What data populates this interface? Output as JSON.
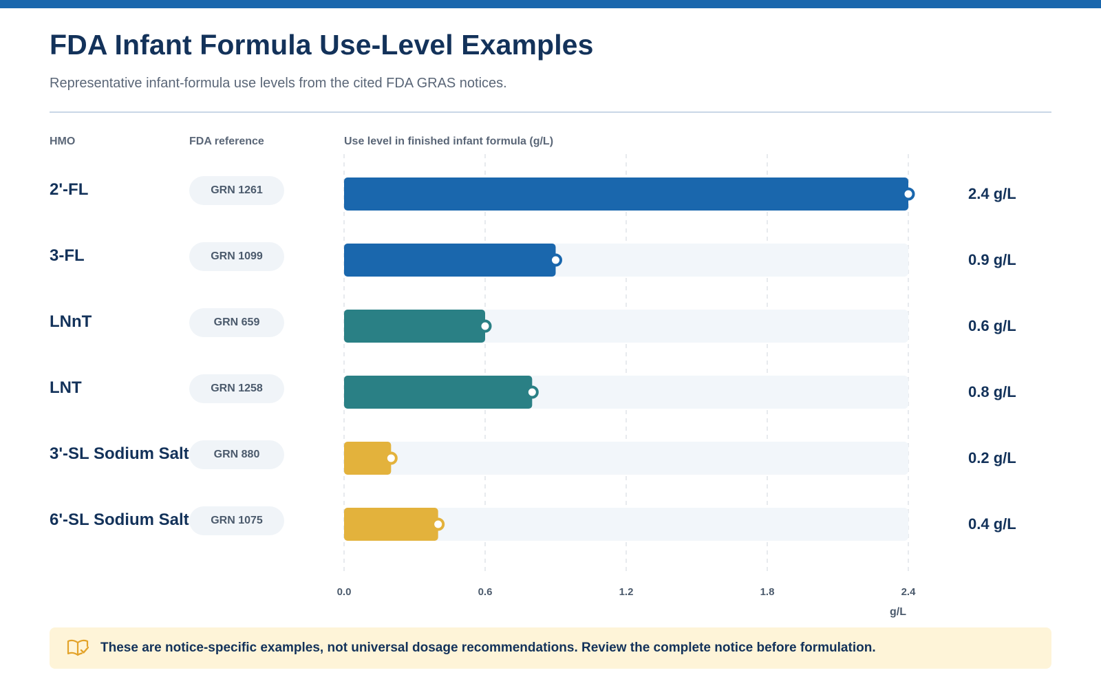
{
  "page": {
    "title": "FDA Infant Formula Use-Level Examples",
    "subtitle": "Representative infant-formula use levels from the cited FDA GRAS notices."
  },
  "columns": {
    "hmo": "HMO",
    "reference": "FDA reference",
    "use_level": "Use level in finished infant formula (g/L)"
  },
  "colors": {
    "blue": "#1a67ad",
    "teal": "#2a8085",
    "gold": "#e3b23c",
    "track": "#f2f6fa",
    "grid": "#dfe3e8"
  },
  "chart_data": {
    "type": "bar",
    "orientation": "horizontal",
    "categories": [
      "2'-FL",
      "3-FL",
      "LNnT",
      "LNT",
      "3'-SL Sodium Salt",
      "6'-SL Sodium Salt"
    ],
    "references": [
      "GRN 1261",
      "GRN 1099",
      "GRN 659",
      "GRN 1258",
      "GRN 880",
      "GRN 1075"
    ],
    "values": [
      2.4,
      0.9,
      0.6,
      0.8,
      0.2,
      0.4
    ],
    "value_labels": [
      "2.4 g/L",
      "0.9 g/L",
      "0.6 g/L",
      "0.8 g/L",
      "0.2 g/L",
      "0.4 g/L"
    ],
    "bar_colors": [
      "#1a67ad",
      "#1a67ad",
      "#2a8085",
      "#2a8085",
      "#e3b23c",
      "#e3b23c"
    ],
    "xlim": [
      0,
      2.4
    ],
    "xticks": [
      "0.0",
      "0.6",
      "1.2",
      "1.8",
      "2.4"
    ],
    "xlabel": "g/L",
    "grid": true
  },
  "note": {
    "icon": "book-check-icon",
    "text": "These are notice-specific examples, not universal dosage recommendations. Review the complete notice before formulation."
  }
}
